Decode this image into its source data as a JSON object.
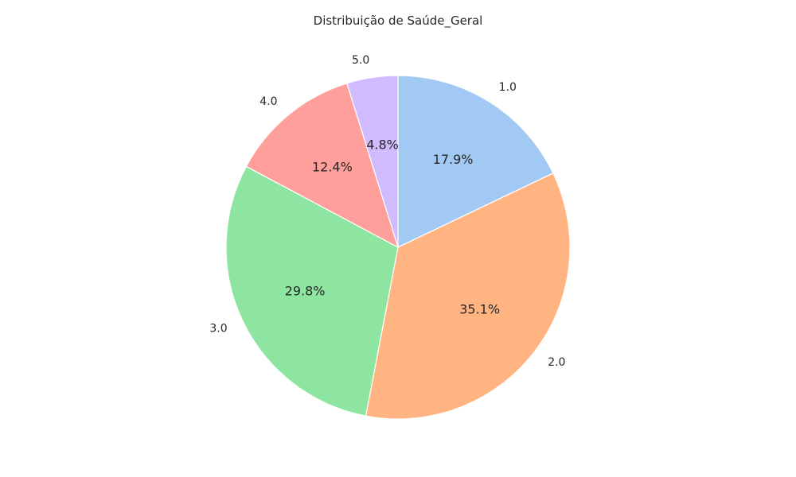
{
  "chart_data": {
    "type": "pie",
    "title": "Distribuição de Saúde_Geral",
    "start_angle_deg": 90,
    "direction": "clockwise",
    "slices": [
      {
        "label": "1.0",
        "value": 17.9,
        "pct_text": "17.9%",
        "color": "#a1c9f4"
      },
      {
        "label": "2.0",
        "value": 35.1,
        "pct_text": "35.1%",
        "color": "#ffb482"
      },
      {
        "label": "3.0",
        "value": 29.8,
        "pct_text": "29.8%",
        "color": "#8de5a1"
      },
      {
        "label": "4.0",
        "value": 12.4,
        "pct_text": "12.4%",
        "color": "#ff9f9b"
      },
      {
        "label": "5.0",
        "value": 4.8,
        "pct_text": "4.8%",
        "color": "#d0bbff"
      }
    ]
  }
}
